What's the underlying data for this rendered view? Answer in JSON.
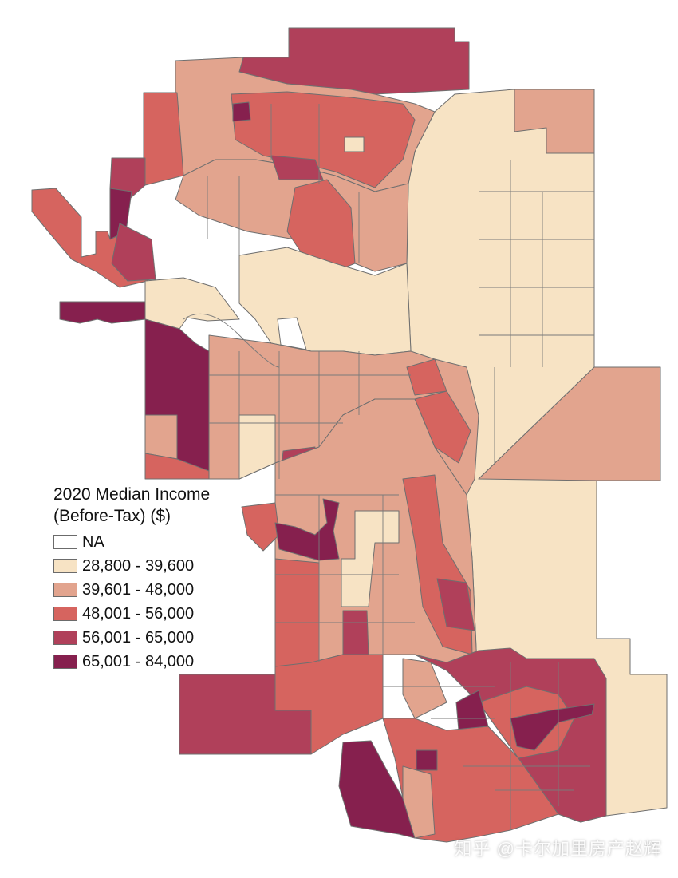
{
  "legend": {
    "title_line1": "2020 Median Income",
    "title_line2": "(Before-Tax) ($)",
    "classes": [
      {
        "label": "NA",
        "color": "#ffffff"
      },
      {
        "label": "28,800 - 39,600",
        "color": "#f7e3c4"
      },
      {
        "label": "39,601 - 48,000",
        "color": "#e2a48e"
      },
      {
        "label": "48,001 - 56,000",
        "color": "#d6645f"
      },
      {
        "label": "56,001 - 65,000",
        "color": "#b0405a"
      },
      {
        "label": "65,001 - 84,000",
        "color": "#86204e"
      }
    ]
  },
  "watermark": "知乎 @卡尔加里房产赵辉",
  "colors": {
    "boundary": "#6f6f6f",
    "background": "#ffffff"
  }
}
